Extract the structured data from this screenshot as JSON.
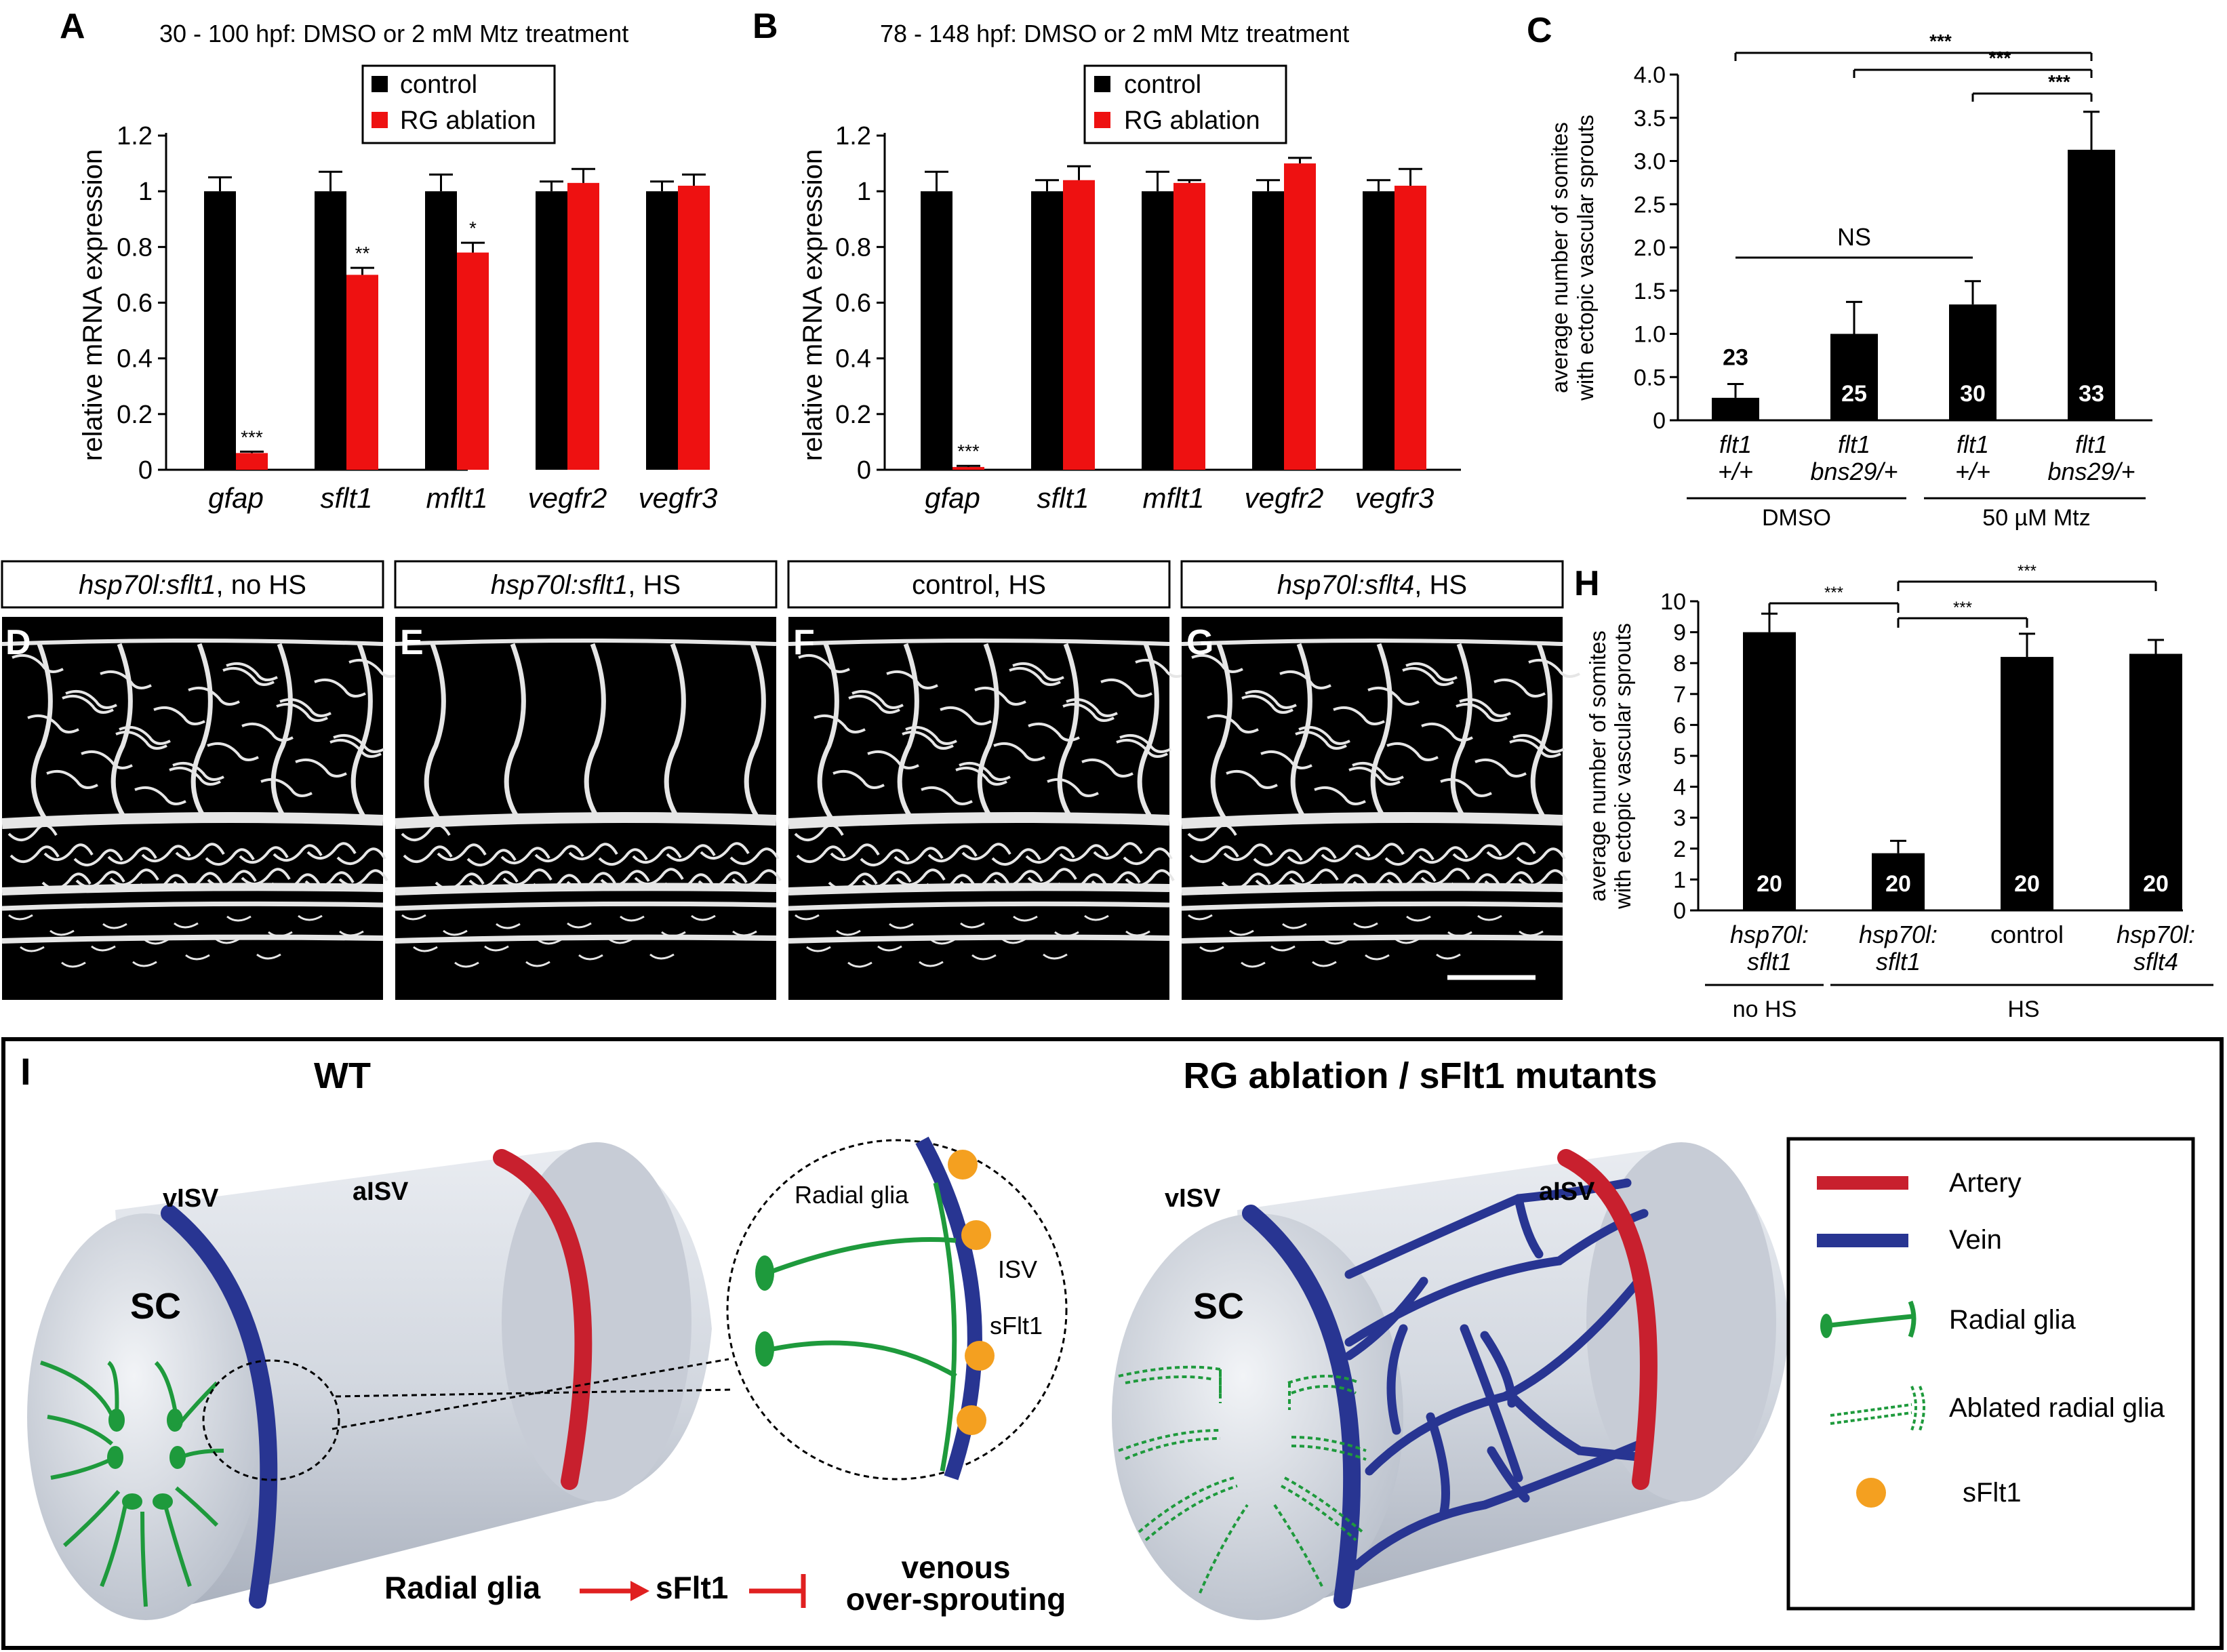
{
  "panel_letters": {
    "A": "A",
    "B": "B",
    "C": "C",
    "D": "D",
    "E": "E",
    "F": "F",
    "G": "G",
    "H": "H",
    "I": "I"
  },
  "legend_ab": {
    "control": "control",
    "ablation": "RG ablation"
  },
  "colors": {
    "control": "#000000",
    "ablation": "#ee1111",
    "artery": "#c8202e",
    "vein": "#283592",
    "glia": "#1e9a3c",
    "sflt1_dot": "#f4a020"
  },
  "chart_data": [
    {
      "id": "A",
      "type": "bar",
      "title": "30 - 100 hpf:  DMSO or 2 mM Mtz treatment",
      "ylabel": "relative mRNA expression",
      "ylim": [
        0,
        1.2
      ],
      "yticks": [
        "0",
        "0.2",
        "0.4",
        "0.6",
        "0.8",
        "1",
        "1.2"
      ],
      "categories": [
        "gfap",
        "sflt1",
        "mflt1",
        "vegfr2",
        "vegfr3"
      ],
      "series": [
        {
          "name": "control",
          "values": [
            1,
            1,
            1,
            1,
            1
          ],
          "errors": [
            0.05,
            0.07,
            0.06,
            0.035,
            0.035
          ]
        },
        {
          "name": "RG ablation",
          "values": [
            0.06,
            0.7,
            0.78,
            1.03,
            1.02
          ],
          "errors": [
            0.005,
            0.025,
            0.035,
            0.05,
            0.04
          ]
        }
      ],
      "significance": [
        "***",
        "**",
        "*",
        "",
        ""
      ]
    },
    {
      "id": "B",
      "type": "bar",
      "title": "78 - 148 hpf:  DMSO or 2 mM Mtz treatment",
      "ylabel": "relative mRNA expression",
      "ylim": [
        0,
        1.2
      ],
      "yticks": [
        "0",
        "0.2",
        "0.4",
        "0.6",
        "0.8",
        "1",
        "1.2"
      ],
      "categories": [
        "gfap",
        "sflt1",
        "mflt1",
        "vegfr2",
        "vegfr3"
      ],
      "series": [
        {
          "name": "control",
          "values": [
            1,
            1,
            1,
            1,
            1
          ],
          "errors": [
            0.07,
            0.04,
            0.07,
            0.04,
            0.04
          ]
        },
        {
          "name": "RG ablation",
          "values": [
            0.01,
            1.04,
            1.03,
            1.1,
            1.02
          ],
          "errors": [
            0.004,
            0.05,
            0.01,
            0.02,
            0.06
          ]
        }
      ],
      "significance": [
        "***",
        "",
        "",
        "",
        ""
      ]
    },
    {
      "id": "C",
      "type": "bar",
      "ylabel_lines": [
        "average number of somites",
        "with ectopic vascular sprouts"
      ],
      "ylim": [
        0,
        4
      ],
      "yticks": [
        "0",
        "0.5",
        "1.0",
        "1.5",
        "2.0",
        "2.5",
        "3.0",
        "3.5",
        "4.0"
      ],
      "categories": [
        [
          "flt1",
          "+/+"
        ],
        [
          "flt1",
          "bns29/+"
        ],
        [
          "flt1",
          "+/+"
        ],
        [
          "flt1",
          "bns29/+"
        ]
      ],
      "values": [
        0.26,
        1.0,
        1.34,
        3.13
      ],
      "errors": [
        0.16,
        0.37,
        0.27,
        0.44
      ],
      "n": [
        "23",
        "25",
        "30",
        "33"
      ],
      "groups": [
        "DMSO",
        "50 µM Mtz"
      ],
      "brackets": [
        "***",
        "***",
        "***"
      ],
      "ns_label": "NS"
    },
    {
      "id": "H",
      "type": "bar",
      "ylabel_lines": [
        "average number of somites",
        "with ectopic vascular sprouts"
      ],
      "ylim": [
        0,
        10
      ],
      "yticks": [
        "0",
        "1",
        "2",
        "3",
        "4",
        "5",
        "6",
        "7",
        "8",
        "9",
        "10"
      ],
      "categories": [
        [
          "hsp70l:",
          "sflt1"
        ],
        [
          "hsp70l:",
          "sflt1"
        ],
        [
          "control",
          ""
        ],
        [
          "hsp70l:",
          "sflt4"
        ]
      ],
      "values": [
        9.0,
        1.85,
        8.2,
        8.3
      ],
      "errors": [
        0.6,
        0.4,
        0.75,
        0.45
      ],
      "n": [
        "20",
        "20",
        "20",
        "20"
      ],
      "groups": [
        "no HS",
        "HS"
      ],
      "brackets": [
        "***",
        "***",
        "***"
      ]
    }
  ],
  "image_panels": {
    "D": {
      "title_italic": "hsp70l:sflt1",
      "title_rest": ", no HS"
    },
    "E": {
      "title_italic": "hsp70l:sflt1",
      "title_rest": ", HS"
    },
    "F": {
      "title_italic": "",
      "title_rest": "control, HS"
    },
    "G": {
      "title_italic": "hsp70l:sflt4",
      "title_rest": ", HS"
    }
  },
  "schematic": {
    "wt_title": "WT",
    "mut_title": "RG ablation / sFlt1 mutants",
    "aISV": "aISV",
    "vISV": "vISV",
    "SC": "SC",
    "inset_radial_glia": "Radial glia",
    "inset_isv": "ISV",
    "inset_sflt1": "sFlt1",
    "pathway_a": "Radial glia",
    "pathway_b": "sFlt1",
    "pathway_c1": "venous",
    "pathway_c2": "over-sprouting",
    "legend": [
      "Artery",
      "Vein",
      "Radial glia",
      "Ablated radial glia",
      "sFlt1"
    ]
  }
}
